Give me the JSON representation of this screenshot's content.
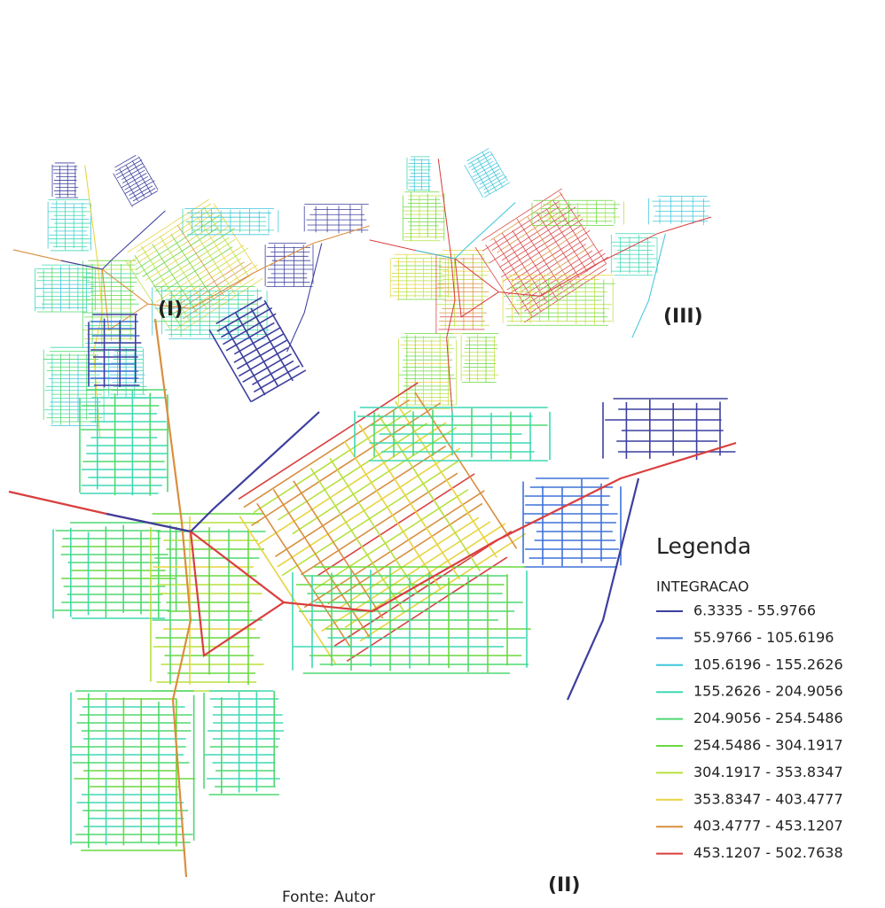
{
  "labels": {
    "map_1": "(I)",
    "map_2": "(II)",
    "map_3": "(III)"
  },
  "legend": {
    "title": "Legenda",
    "field": "INTEGRACAO",
    "items": [
      {
        "range": "6.3335 - 55.9766",
        "color": "#3d3f9e"
      },
      {
        "range": "55.9766 - 105.6196",
        "color": "#3f72d8"
      },
      {
        "range": "105.6196 - 155.2626",
        "color": "#3fc6dc"
      },
      {
        "range": "155.2626 - 204.9056",
        "color": "#3fd8b4"
      },
      {
        "range": "204.9056 - 254.5486",
        "color": "#4fd870"
      },
      {
        "range": "254.5486 - 304.1917",
        "color": "#6ad83f"
      },
      {
        "range": "304.1917 - 353.8347",
        "color": "#b8e03f"
      },
      {
        "range": "353.8347 - 403.4777",
        "color": "#e8d43f"
      },
      {
        "range": "403.4777 - 453.1207",
        "color": "#d98f3f"
      },
      {
        "range": "453.1207 - 502.7638",
        "color": "#d93f3f"
      }
    ]
  },
  "source": "Fonte: Autor"
}
